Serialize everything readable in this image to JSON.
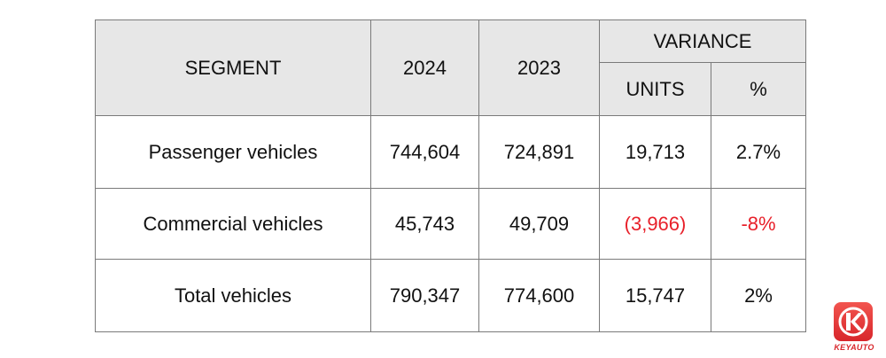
{
  "table": {
    "header": {
      "segment": "SEGMENT",
      "year_current": "2024",
      "year_previous": "2023",
      "variance": "VARIANCE",
      "units": "UNITS",
      "percent": "%"
    },
    "rows": [
      {
        "segment": "Passenger vehicles",
        "y2024": "744,604",
        "y2023": "724,891",
        "units": "19,713",
        "percent": "2.7%"
      },
      {
        "segment": "Commercial vehicles",
        "y2024": "45,743",
        "y2023": "49,709",
        "units": "(3,966)",
        "percent": "-8%"
      },
      {
        "segment": "Total vehicles",
        "y2024": "790,347",
        "y2023": "774,600",
        "units": "15,747",
        "percent": "2%"
      }
    ],
    "negative_color": "#e8202a",
    "header_background": "#e7e7e7"
  },
  "logo": {
    "icon": "keyauto-k-logo-icon",
    "text": "KEYAUTO"
  }
}
